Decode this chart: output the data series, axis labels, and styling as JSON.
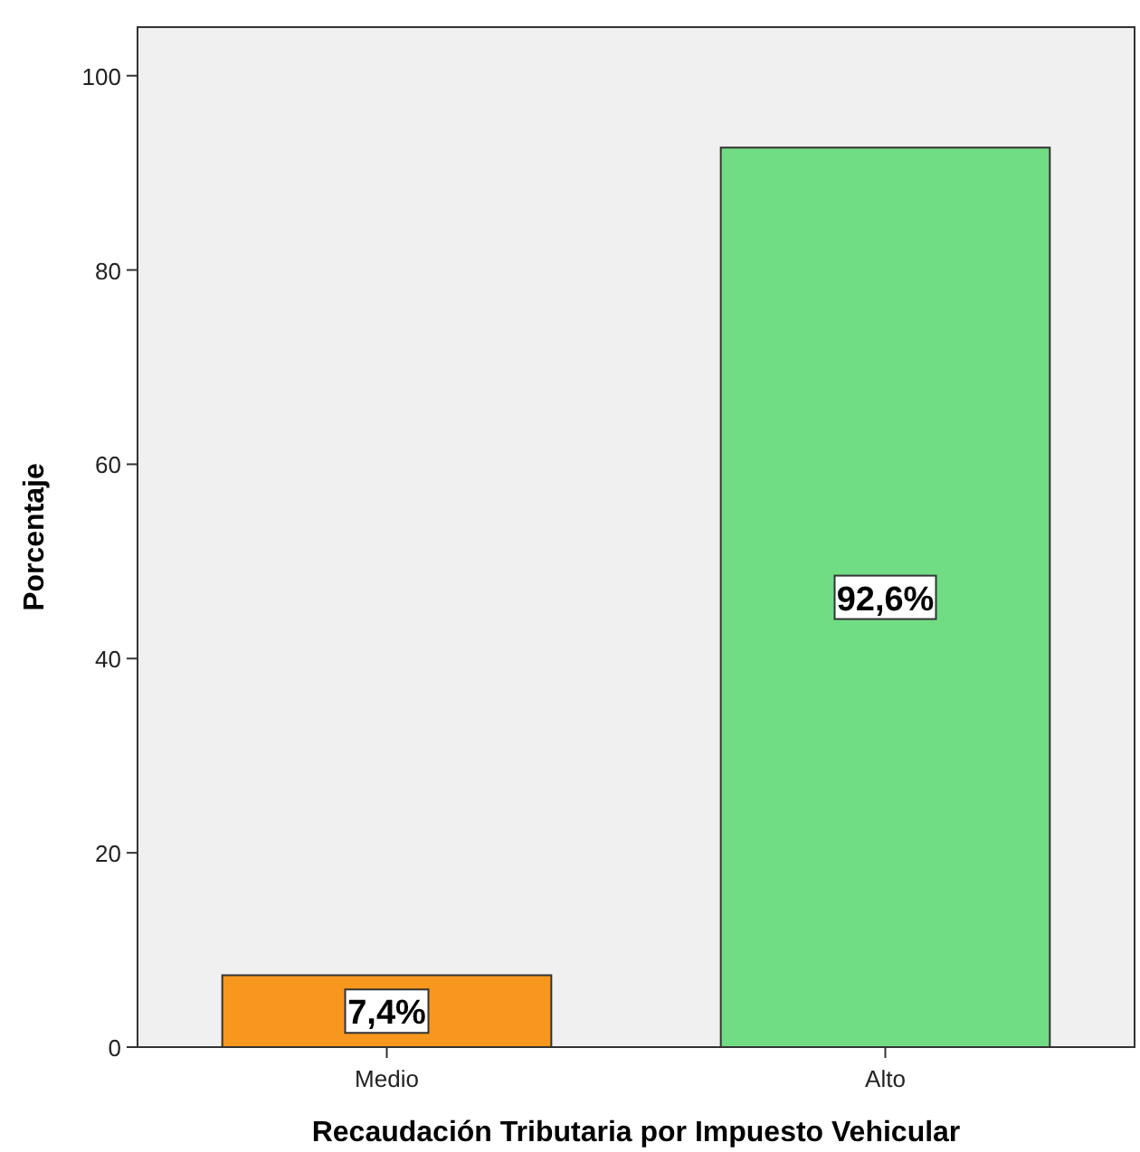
{
  "chart_data": {
    "type": "bar",
    "xlabel": "Recaudación Tributaria por Impuesto Vehicular",
    "ylabel": "Porcentaje",
    "categories": [
      "Medio",
      "Alto"
    ],
    "values": [
      7.4,
      92.6
    ],
    "colors": [
      "#f7971e",
      "#70dd84"
    ],
    "value_labels": [
      "7,4%",
      "92,6%"
    ],
    "ylim": [
      0,
      105
    ],
    "yticks": [
      0,
      20,
      40,
      60,
      80,
      100
    ],
    "grid": false
  }
}
